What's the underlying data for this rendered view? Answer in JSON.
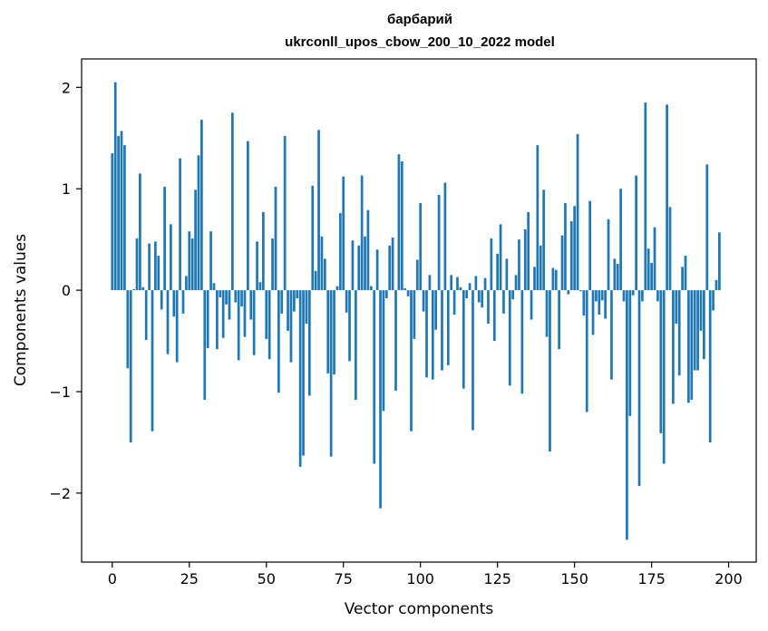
{
  "chart_data": {
    "type": "bar",
    "title_line1": "барбарий",
    "title_line2": "ukrconll_upos_cbow_200_10_2022 model",
    "xlabel": "Vector components",
    "ylabel": "Components values",
    "xlim": [
      -9.95,
      208.95
    ],
    "ylim": [
      -2.68,
      2.28
    ],
    "xticks": [
      0,
      25,
      50,
      75,
      100,
      125,
      150,
      175,
      200
    ],
    "yticks": [
      -2,
      -1,
      0,
      1,
      2
    ],
    "ytick_labels": [
      "−2",
      "−1",
      "0",
      "1",
      "2"
    ],
    "bar_color": "#1f77b4",
    "grid": false,
    "values": [
      1.35,
      2.05,
      1.52,
      1.57,
      1.43,
      -0.77,
      -1.5,
      0.01,
      0.51,
      1.15,
      0.03,
      -0.49,
      0.46,
      -1.39,
      0.48,
      0.34,
      -0.19,
      1.02,
      -0.63,
      0.65,
      -0.26,
      -0.71,
      1.3,
      -0.23,
      0.14,
      0.58,
      0.51,
      0.99,
      1.33,
      1.68,
      -1.08,
      -0.57,
      0.58,
      0.07,
      -0.58,
      -0.07,
      -0.47,
      -0.14,
      -0.29,
      1.75,
      -0.12,
      -0.69,
      -0.16,
      -0.46,
      1.47,
      -0.29,
      -0.64,
      0.48,
      0.08,
      0.77,
      -0.48,
      -0.68,
      0.51,
      1.02,
      -1.01,
      -0.23,
      1.52,
      -0.4,
      -0.71,
      -0.21,
      -0.08,
      -1.74,
      -1.63,
      -0.33,
      -1.04,
      1.03,
      0.19,
      1.58,
      0.53,
      0.31,
      -0.82,
      -1.64,
      -0.83,
      0.04,
      0.76,
      1.12,
      -0.22,
      -0.7,
      0.49,
      -1.08,
      0.44,
      1.13,
      0.53,
      0.79,
      0.04,
      -1.71,
      0.4,
      -2.15,
      -1.19,
      -0.08,
      0.44,
      0.52,
      -0.99,
      1.34,
      1.27,
      0.02,
      -0.06,
      -1.39,
      -0.48,
      0.3,
      0.86,
      -0.21,
      -0.86,
      0.15,
      -0.88,
      -0.39,
      0.94,
      -0.79,
      1.06,
      -0.74,
      0.15,
      -0.24,
      0.13,
      0.03,
      -0.97,
      -0.08,
      0.07,
      -1.38,
      0.14,
      -0.12,
      -0.17,
      0.12,
      -0.33,
      0.51,
      -0.5,
      0.36,
      0.65,
      -0.23,
      0.31,
      -0.94,
      -0.09,
      0.15,
      0.5,
      -1.02,
      0.6,
      0.77,
      -0.29,
      0.23,
      1.43,
      0.44,
      0.99,
      -0.46,
      -1.59,
      0.22,
      0.2,
      -0.58,
      0.54,
      0.86,
      -0.04,
      0.68,
      0.83,
      1.54,
      -0.01,
      -0.25,
      -1.2,
      0.88,
      -0.44,
      -0.11,
      -0.24,
      -0.1,
      -0.28,
      0.7,
      -0.88,
      0.31,
      0.26,
      1.0,
      -0.11,
      -2.46,
      -1.24,
      -0.05,
      1.13,
      -1.93,
      -0.11,
      1.85,
      0.41,
      0.27,
      0.62,
      -0.11,
      -1.41,
      -1.71,
      1.83,
      0.82,
      -1.12,
      -0.33,
      -0.84,
      0.23,
      0.34,
      -1.11,
      -1.08,
      -0.79,
      -0.79,
      -0.4,
      -0.68,
      1.24,
      -1.5,
      -0.2,
      0.1,
      0.57
    ]
  }
}
